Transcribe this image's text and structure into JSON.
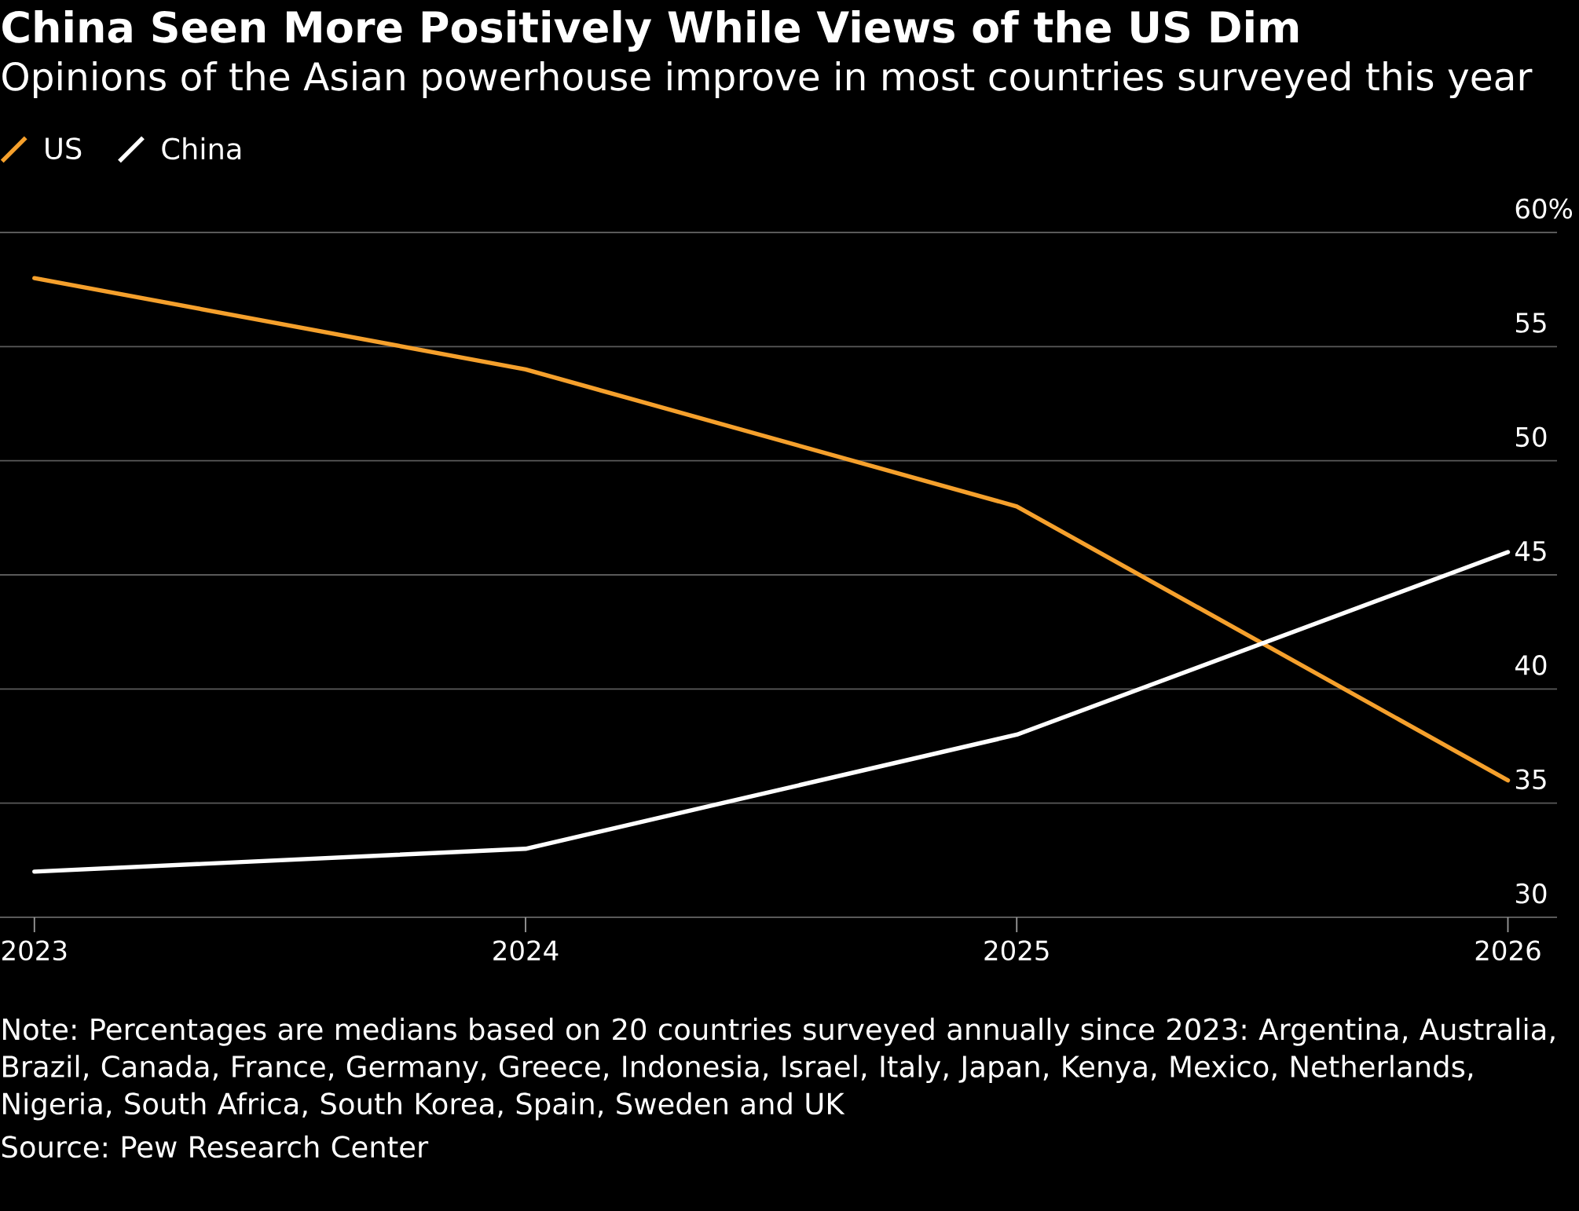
{
  "chart_data": {
    "type": "line",
    "title": "China Seen More Positively While Views of the US Dim",
    "subtitle": "Opinions of the Asian powerhouse improve in most countries surveyed this year",
    "x": [
      2023,
      2024,
      2025,
      2026
    ],
    "series": [
      {
        "name": "US",
        "color": "#f5a02c",
        "values": [
          58,
          54,
          48,
          36
        ]
      },
      {
        "name": "China",
        "color": "#ffffff",
        "values": [
          32,
          33,
          38,
          46
        ]
      }
    ],
    "xlim": [
      2022.93,
      2026.1
    ],
    "xticks": [
      2023,
      2024,
      2025,
      2026
    ],
    "ylim": [
      30,
      60
    ],
    "yticks": [
      30,
      35,
      40,
      45,
      50,
      55,
      {
        "value": 60,
        "label": "60%"
      }
    ],
    "grid": "y",
    "legend": "top left",
    "line_style": "solid",
    "annotations": [
      "Note: Percentages are medians based on 20 countries surveyed annually since 2023: Argentina, Australia, Brazil, Canada, France, Germany, Greece, Indonesia, Israel, Italy, Japan, Kenya, Mexico, Netherlands, Nigeria, South Africa, South Korea, Spain, Sweden and UK",
      "Source: Pew Research Center"
    ]
  }
}
